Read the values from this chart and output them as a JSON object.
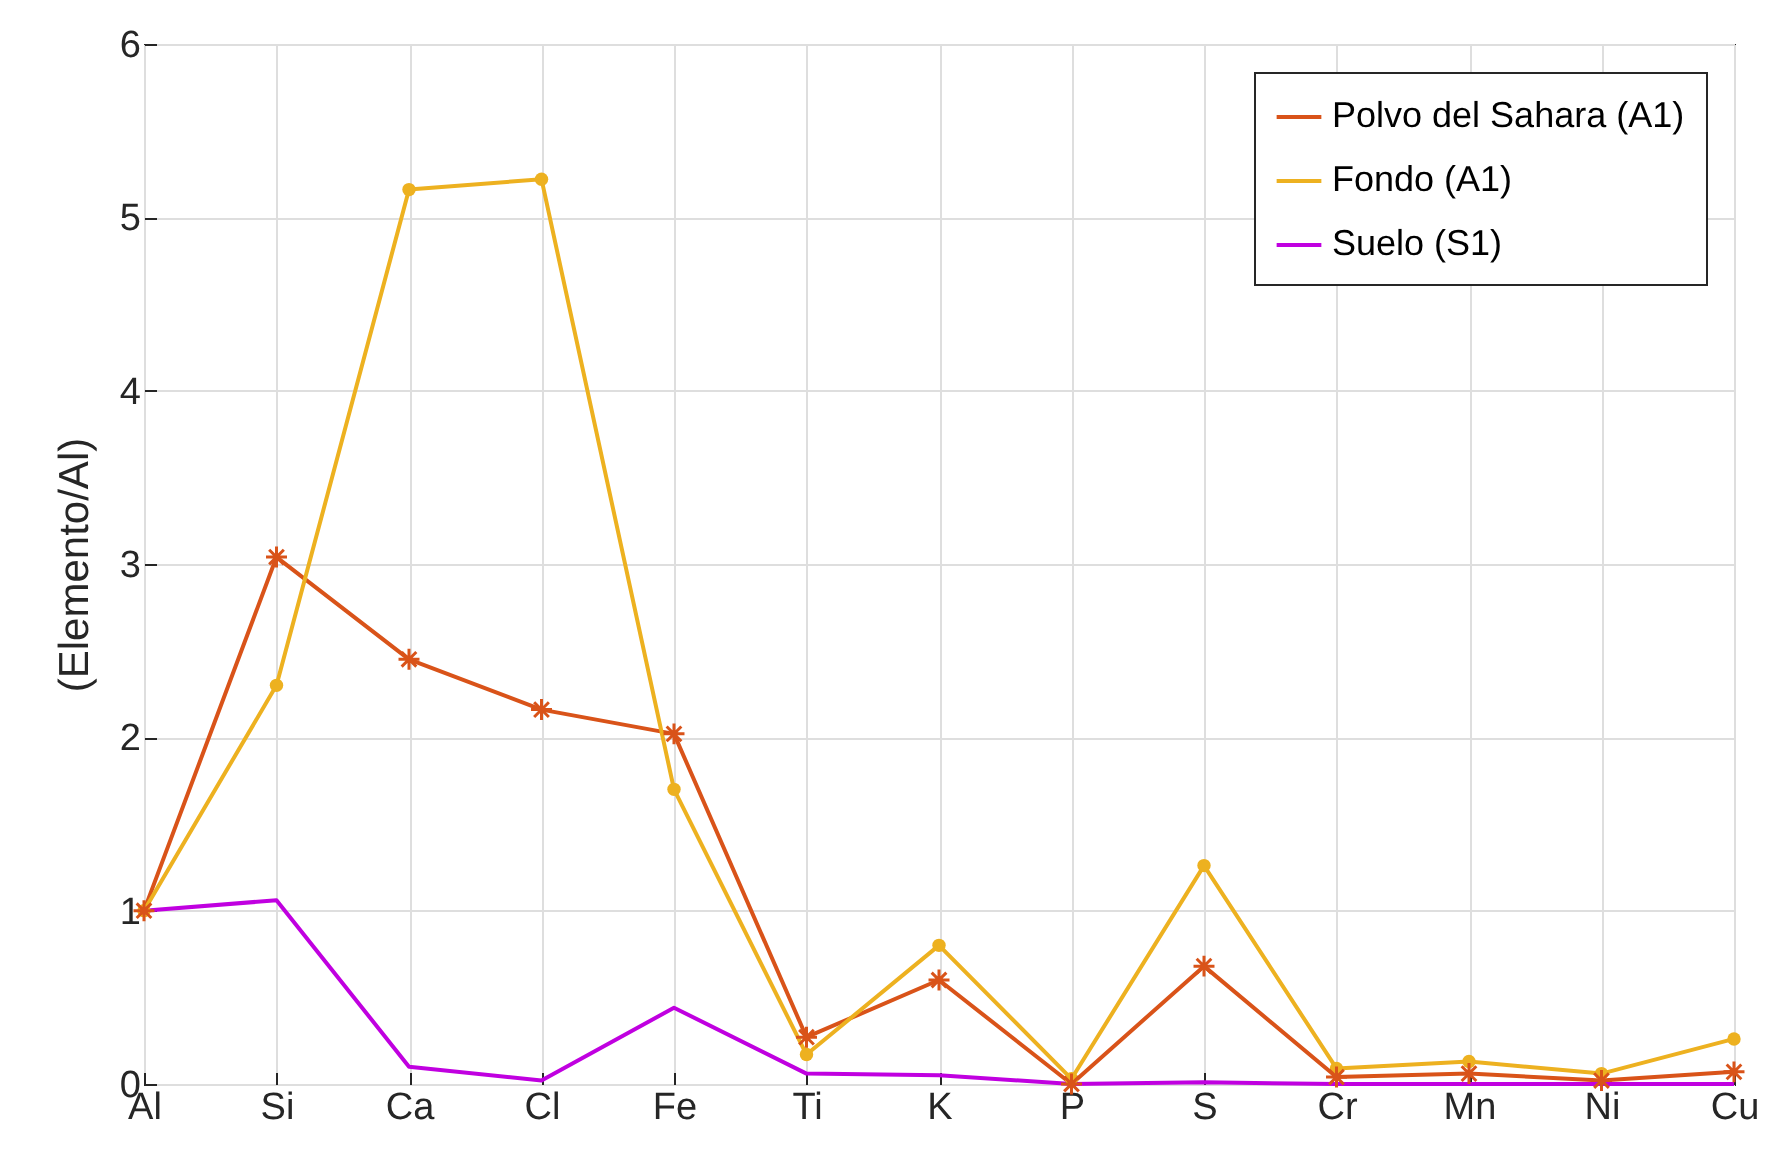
{
  "chart_data": {
    "type": "line",
    "ylabel": "(Elemento/Al)",
    "categories": [
      "Al",
      "Si",
      "Ca",
      "Cl",
      "Fe",
      "Ti",
      "K",
      "P",
      "S",
      "Cr",
      "Mn",
      "Ni",
      "Cu"
    ],
    "series": [
      {
        "name": "Polvo del Sahara (A1)",
        "color": "#d95319",
        "marker": "cross",
        "values": [
          1.0,
          3.04,
          2.45,
          2.16,
          2.02,
          0.27,
          0.6,
          0.0,
          0.68,
          0.04,
          0.06,
          0.02,
          0.07
        ]
      },
      {
        "name": "Fondo (A1)",
        "color": "#edb120",
        "marker": "circle",
        "values": [
          1.0,
          2.3,
          5.16,
          5.22,
          1.7,
          0.17,
          0.8,
          0.03,
          1.26,
          0.09,
          0.13,
          0.06,
          0.26
        ]
      },
      {
        "name": "Suelo (S1)",
        "color": "#c000e0",
        "marker": "none",
        "values": [
          1.0,
          1.06,
          0.1,
          0.02,
          0.44,
          0.06,
          0.05,
          0.0,
          0.01,
          0.0,
          0.0,
          0.0,
          0.0
        ]
      }
    ],
    "ylim": [
      0,
      6
    ],
    "yticks": [
      0,
      1,
      2,
      3,
      4,
      5,
      6
    ],
    "grid": true,
    "legend": "top right"
  }
}
